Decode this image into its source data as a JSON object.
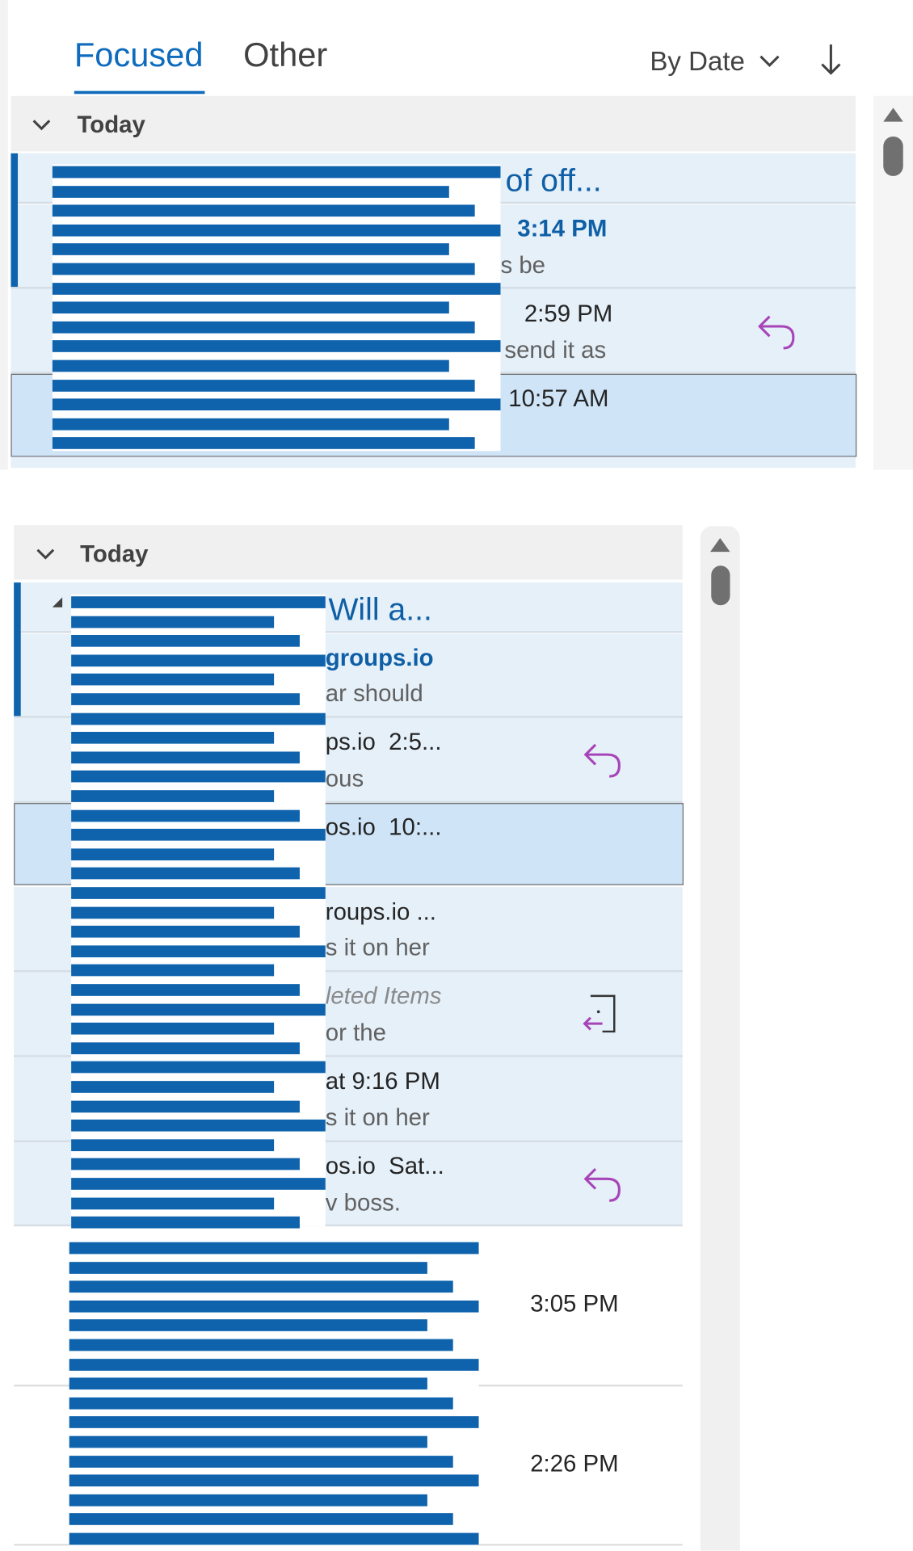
{
  "top_pane": {
    "tabs": [
      "Focused",
      "Other"
    ],
    "sort": "By Date",
    "group": "Today",
    "rows": [
      {
        "subject": "of off..."
      },
      {
        "time": "3:14 PM",
        "preview": "s be"
      },
      {
        "time": "2:59 PM",
        "preview": "send it as"
      },
      {
        "time": "10:57 AM"
      }
    ]
  },
  "bottom_pane": {
    "group": "Today",
    "rows": [
      {
        "subject": "Will a..."
      },
      {
        "sender": "groups.io",
        "preview": "ar should"
      },
      {
        "sender": "ps.io  2:5...",
        "preview": "ous"
      },
      {
        "sender": "os.io  10:..."
      },
      {
        "sender": "roups.io ...",
        "preview": "s it on her"
      },
      {
        "folder": "leted Items",
        "preview": "or the"
      },
      {
        "sender": "at 9:16 PM",
        "preview": "s it on her"
      },
      {
        "sender": "os.io  Sat...",
        "preview": "v boss."
      },
      {
        "time": "3:05 PM"
      },
      {
        "time": "2:26 PM"
      }
    ]
  }
}
